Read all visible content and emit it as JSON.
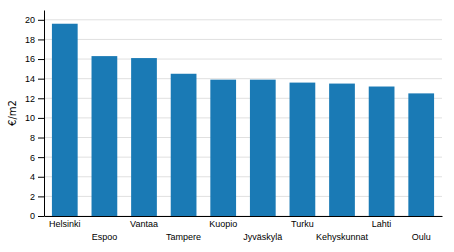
{
  "chart_data": {
    "type": "bar",
    "categories": [
      "Helsinki",
      "Espoo",
      "Vantaa",
      "Tampere",
      "Kuopio",
      "Jyväskylä",
      "Turku",
      "Kehyskunnat",
      "Lahti",
      "Oulu"
    ],
    "values": [
      19.6,
      16.3,
      16.1,
      14.5,
      13.9,
      13.9,
      13.6,
      13.5,
      13.2,
      12.5
    ],
    "color": "#1a7ab5",
    "ylabel": "€/m2",
    "ylim": [
      0,
      21
    ],
    "yticks": [
      0,
      2,
      4,
      6,
      8,
      10,
      12,
      14,
      16,
      18,
      20
    ],
    "grid": true
  }
}
